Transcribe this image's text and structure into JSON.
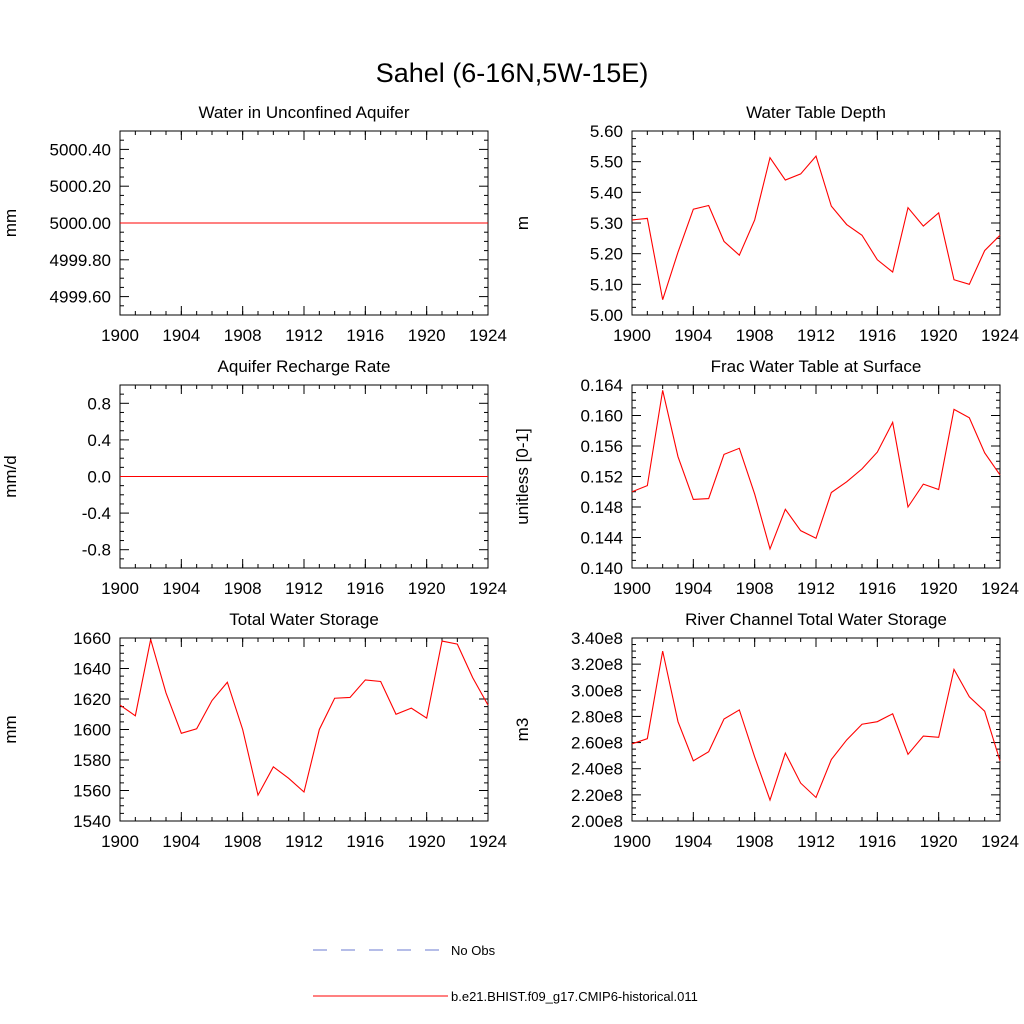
{
  "title": "Sahel (6-16N,5W-15E)",
  "legend": [
    {
      "label": "No Obs",
      "color": "#6b7bd1",
      "dash": true
    },
    {
      "label": "b.e21.BHIST.f09_g17.CMIP6-historical.011",
      "color": "#ff0000",
      "dash": false
    }
  ],
  "line_color": "#ff0000",
  "chart_data": [
    {
      "type": "line",
      "title": "Water in Unconfined Aquifer",
      "ylabel": "mm",
      "xlim": [
        1900,
        1924
      ],
      "ylim": [
        4999.5,
        5000.5
      ],
      "x_ticks": [
        "1900",
        "1904",
        "1908",
        "1912",
        "1916",
        "1920",
        "1924"
      ],
      "y_ticks": [
        {
          "value": 4999.6,
          "label": "4999.60"
        },
        {
          "value": 4999.8,
          "label": "4999.80"
        },
        {
          "value": 5000.0,
          "label": "5000.00"
        },
        {
          "value": 5000.2,
          "label": "5000.20"
        },
        {
          "value": 5000.4,
          "label": "5000.40"
        }
      ],
      "x": [
        1900,
        1924
      ],
      "values": [
        5000.0,
        5000.0
      ]
    },
    {
      "type": "line",
      "title": "Water Table Depth",
      "ylabel": "m",
      "xlim": [
        1900,
        1924
      ],
      "ylim": [
        5.0,
        5.6
      ],
      "x_ticks": [
        "1900",
        "1904",
        "1908",
        "1912",
        "1916",
        "1920",
        "1924"
      ],
      "y_ticks": [
        {
          "value": 5.0,
          "label": "5.00"
        },
        {
          "value": 5.1,
          "label": "5.10"
        },
        {
          "value": 5.2,
          "label": "5.20"
        },
        {
          "value": 5.3,
          "label": "5.30"
        },
        {
          "value": 5.4,
          "label": "5.40"
        },
        {
          "value": 5.5,
          "label": "5.50"
        },
        {
          "value": 5.6,
          "label": "5.60"
        }
      ],
      "x": [
        1900,
        1901,
        1902,
        1903,
        1904,
        1905,
        1906,
        1907,
        1908,
        1909,
        1910,
        1911,
        1912,
        1913,
        1914,
        1915,
        1916,
        1917,
        1918,
        1919,
        1920,
        1921,
        1922,
        1923,
        1924
      ],
      "values": [
        5.31,
        5.315,
        5.05,
        5.205,
        5.345,
        5.357,
        5.24,
        5.195,
        5.31,
        5.513,
        5.44,
        5.46,
        5.518,
        5.355,
        5.295,
        5.26,
        5.18,
        5.14,
        5.35,
        5.29,
        5.333,
        5.115,
        5.1,
        5.21,
        5.26
      ]
    },
    {
      "type": "line",
      "title": "Aquifer Recharge Rate",
      "ylabel": "mm/d",
      "xlim": [
        1900,
        1924
      ],
      "ylim": [
        -1.0,
        1.0
      ],
      "x_ticks": [
        "1900",
        "1904",
        "1908",
        "1912",
        "1916",
        "1920",
        "1924"
      ],
      "y_ticks": [
        {
          "value": -0.8,
          "label": "-0.8"
        },
        {
          "value": -0.4,
          "label": "-0.4"
        },
        {
          "value": 0.0,
          "label": "0.0"
        },
        {
          "value": 0.4,
          "label": "0.4"
        },
        {
          "value": 0.8,
          "label": "0.8"
        }
      ],
      "x": [
        1900,
        1924
      ],
      "values": [
        0.0,
        0.0
      ]
    },
    {
      "type": "line",
      "title": "Frac Water Table at Surface",
      "ylabel": "unitless [0-1]",
      "xlim": [
        1900,
        1924
      ],
      "ylim": [
        0.14,
        0.164
      ],
      "x_ticks": [
        "1900",
        "1904",
        "1908",
        "1912",
        "1916",
        "1920",
        "1924"
      ],
      "y_ticks": [
        {
          "value": 0.14,
          "label": "0.140"
        },
        {
          "value": 0.144,
          "label": "0.144"
        },
        {
          "value": 0.148,
          "label": "0.148"
        },
        {
          "value": 0.152,
          "label": "0.152"
        },
        {
          "value": 0.156,
          "label": "0.156"
        },
        {
          "value": 0.16,
          "label": "0.160"
        },
        {
          "value": 0.164,
          "label": "0.164"
        }
      ],
      "x": [
        1900,
        1901,
        1902,
        1903,
        1904,
        1905,
        1906,
        1907,
        1908,
        1909,
        1910,
        1911,
        1912,
        1913,
        1914,
        1915,
        1916,
        1917,
        1918,
        1919,
        1920,
        1921,
        1922,
        1923,
        1924
      ],
      "values": [
        0.15,
        0.1508,
        0.1633,
        0.1546,
        0.149,
        0.1491,
        0.1549,
        0.1557,
        0.1497,
        0.1425,
        0.1477,
        0.1449,
        0.1439,
        0.1499,
        0.1513,
        0.153,
        0.1552,
        0.1591,
        0.148,
        0.151,
        0.1503,
        0.1608,
        0.1597,
        0.1551,
        0.1522
      ]
    },
    {
      "type": "line",
      "title": "Total Water Storage",
      "ylabel": "mm",
      "xlim": [
        1900,
        1924
      ],
      "ylim": [
        1540,
        1660
      ],
      "x_ticks": [
        "1900",
        "1904",
        "1908",
        "1912",
        "1916",
        "1920",
        "1924"
      ],
      "y_ticks": [
        {
          "value": 1540,
          "label": "1540"
        },
        {
          "value": 1560,
          "label": "1560"
        },
        {
          "value": 1580,
          "label": "1580"
        },
        {
          "value": 1600,
          "label": "1600"
        },
        {
          "value": 1620,
          "label": "1620"
        },
        {
          "value": 1640,
          "label": "1640"
        },
        {
          "value": 1660,
          "label": "1660"
        }
      ],
      "x": [
        1900,
        1901,
        1902,
        1903,
        1904,
        1905,
        1906,
        1907,
        1908,
        1909,
        1910,
        1911,
        1912,
        1913,
        1914,
        1915,
        1916,
        1917,
        1918,
        1919,
        1920,
        1921,
        1922,
        1923,
        1924
      ],
      "values": [
        1616,
        1609,
        1659,
        1624,
        1597.5,
        1600.5,
        1619,
        1631,
        1600,
        1557,
        1575.5,
        1568,
        1559,
        1600,
        1620.5,
        1621,
        1632.5,
        1631.5,
        1610,
        1614,
        1607.5,
        1658,
        1656,
        1634,
        1616
      ]
    },
    {
      "type": "line",
      "title": "River Channel Total Water Storage",
      "ylabel": "m3",
      "xlim": [
        1900,
        1924
      ],
      "ylim": [
        200000000.0,
        340000000.0
      ],
      "x_ticks": [
        "1900",
        "1904",
        "1908",
        "1912",
        "1916",
        "1920",
        "1924"
      ],
      "y_ticks": [
        {
          "value": 200000000.0,
          "label": "2.00e8"
        },
        {
          "value": 220000000.0,
          "label": "2.20e8"
        },
        {
          "value": 240000000.0,
          "label": "2.40e8"
        },
        {
          "value": 260000000.0,
          "label": "2.60e8"
        },
        {
          "value": 280000000.0,
          "label": "2.80e8"
        },
        {
          "value": 300000000.0,
          "label": "3.00e8"
        },
        {
          "value": 320000000.0,
          "label": "3.20e8"
        },
        {
          "value": 340000000.0,
          "label": "3.40e8"
        }
      ],
      "x": [
        1900,
        1901,
        1902,
        1903,
        1904,
        1905,
        1906,
        1907,
        1908,
        1909,
        1910,
        1911,
        1912,
        1913,
        1914,
        1915,
        1916,
        1917,
        1918,
        1919,
        1920,
        1921,
        1922,
        1923,
        1924
      ],
      "values": [
        259000000.0,
        263000000.0,
        330000000.0,
        276000000.0,
        246000000.0,
        253000000.0,
        278000000.0,
        285000000.0,
        249000000.0,
        216000000.0,
        252000000.0,
        229000000.0,
        218000000.0,
        247000000.0,
        262000000.0,
        274000000.0,
        276000000.0,
        282000000.0,
        251000000.0,
        265000000.0,
        264000000.0,
        316000000.0,
        295000000.0,
        284000000.0,
        246000000.0
      ]
    }
  ]
}
